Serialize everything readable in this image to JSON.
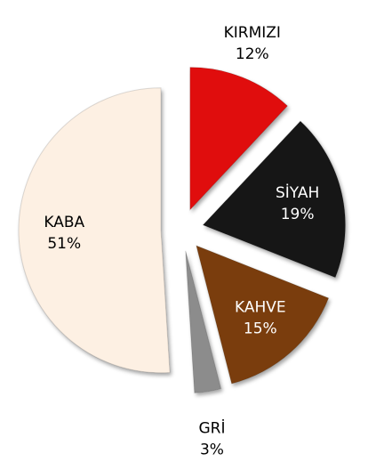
{
  "chart_data": {
    "type": "pie",
    "categories": [
      "KIRMIZI",
      "SİYAH",
      "KAHVE",
      "GRİ",
      "KABA"
    ],
    "values": [
      12,
      19,
      15,
      3,
      51
    ],
    "value_labels": [
      "12%",
      "19%",
      "15%",
      "3%",
      "51%"
    ],
    "colors": [
      "#e00a0a",
      "#141414",
      "#7a3e0c",
      "#8c8c8c",
      "#fdf0e3"
    ]
  }
}
